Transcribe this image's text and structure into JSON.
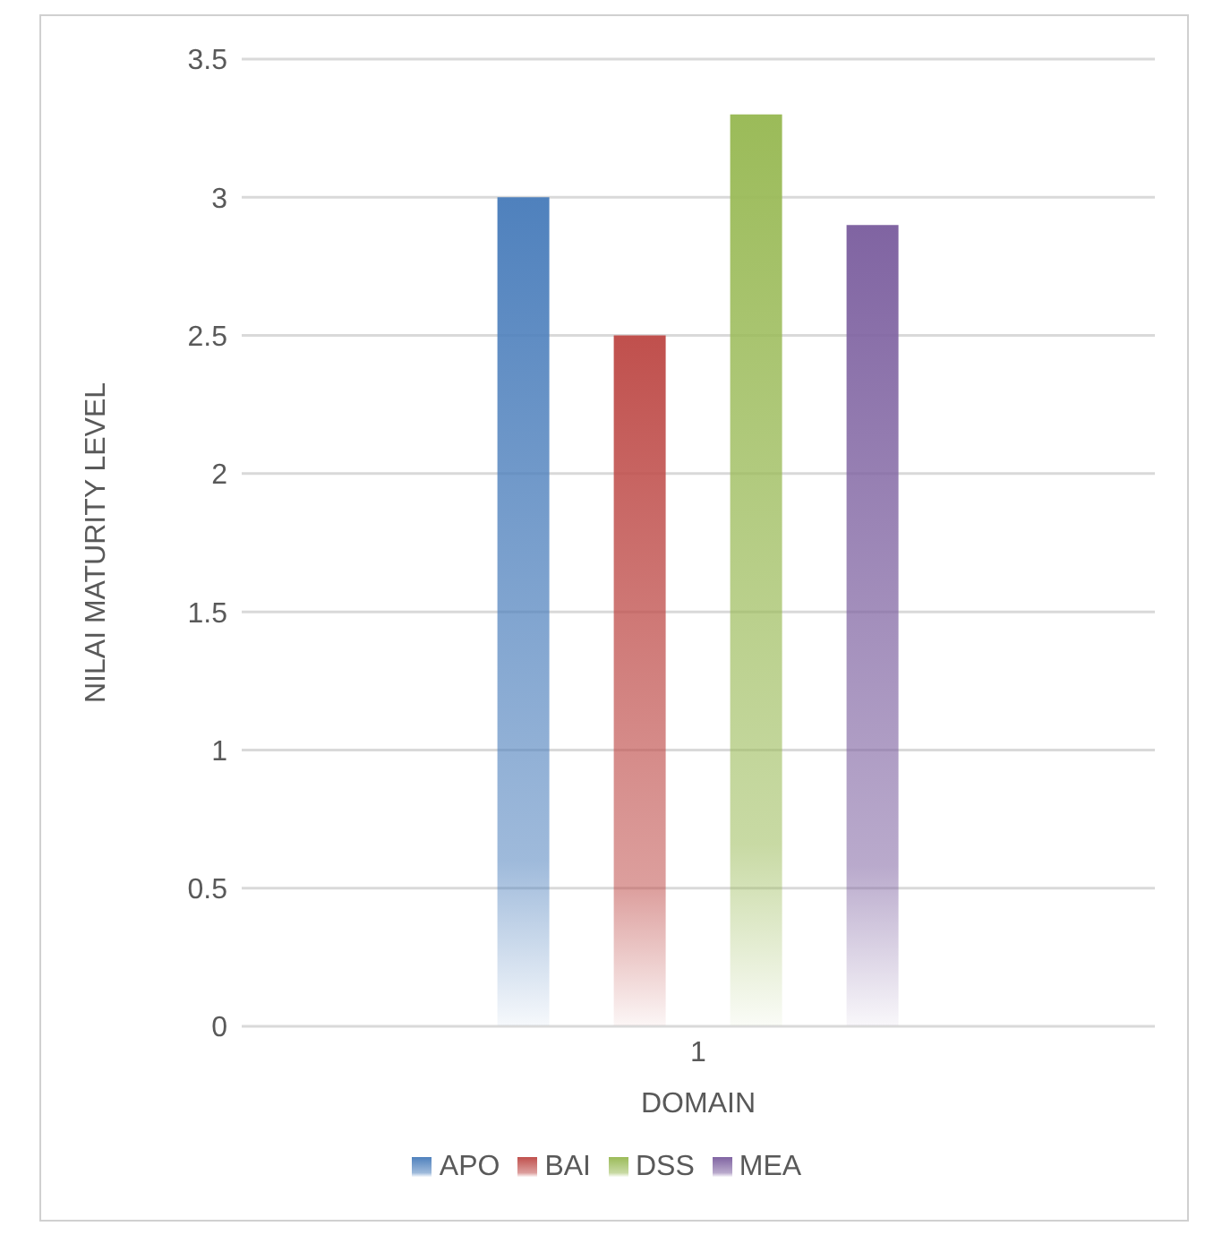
{
  "chart_data": {
    "type": "bar",
    "categories": [
      "1"
    ],
    "xlabel": "DOMAIN",
    "ylabel": "NILAI MATURITY LEVEL",
    "series": [
      {
        "name": "APO",
        "color": "#4f81bd",
        "values": [
          3.0
        ]
      },
      {
        "name": "BAI",
        "color": "#c0504d",
        "values": [
          2.5
        ]
      },
      {
        "name": "DSS",
        "color": "#9bbb59",
        "values": [
          3.3
        ]
      },
      {
        "name": "MEA",
        "color": "#8064a2",
        "values": [
          2.9
        ]
      }
    ],
    "ylim": [
      0,
      3.5
    ],
    "yticks": [
      0,
      0.5,
      1,
      1.5,
      2,
      2.5,
      3,
      3.5
    ],
    "grid": "y",
    "legend": "bottom"
  }
}
